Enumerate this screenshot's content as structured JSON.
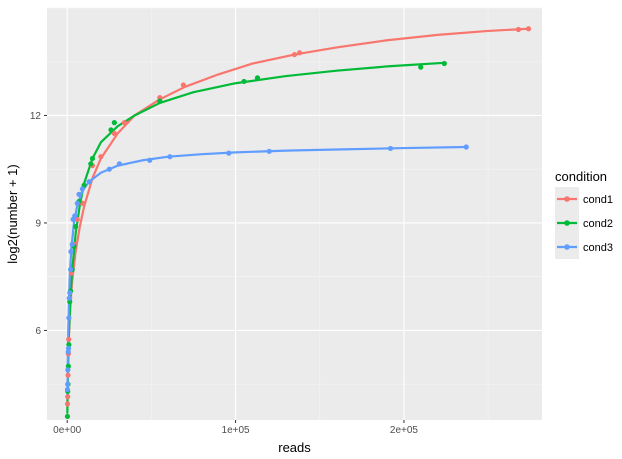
{
  "chart_data": {
    "type": "scatter",
    "title": "",
    "xlabel": "reads",
    "ylabel": "log2(number + 1)",
    "xlim": [
      -12000,
      282000
    ],
    "ylim": [
      3.5,
      15.0
    ],
    "x_ticks": [
      0,
      100000,
      200000
    ],
    "x_tick_labels": [
      "0e+00",
      "1e+05",
      "2e+05"
    ],
    "y_ticks": [
      6,
      9,
      12
    ],
    "y_tick_labels": [
      "6",
      "9",
      "12"
    ],
    "grid": true,
    "legend": {
      "title": "condition",
      "placement": "right"
    },
    "series": [
      {
        "name": "cond1",
        "color": "#F8766D",
        "points": [
          [
            200,
            3.95
          ],
          [
            300,
            4.15
          ],
          [
            500,
            4.75
          ],
          [
            700,
            5.35
          ],
          [
            900,
            5.75
          ],
          [
            1500,
            6.9
          ],
          [
            2500,
            7.6
          ],
          [
            4000,
            8.4
          ],
          [
            6000,
            9.1
          ],
          [
            9000,
            9.55
          ],
          [
            15000,
            10.6
          ],
          [
            20000,
            10.85
          ],
          [
            28000,
            11.5
          ],
          [
            34000,
            11.8
          ],
          [
            55000,
            12.5
          ],
          [
            69000,
            12.85
          ],
          [
            135000,
            13.7
          ],
          [
            138000,
            13.75
          ],
          [
            268000,
            14.4
          ],
          [
            274000,
            14.42
          ]
        ],
        "curve": [
          [
            80,
            3.9
          ],
          [
            500,
            5.0
          ],
          [
            1000,
            5.8
          ],
          [
            2000,
            6.8
          ],
          [
            3000,
            7.4
          ],
          [
            5000,
            8.2
          ],
          [
            7500,
            8.9
          ],
          [
            10000,
            9.45
          ],
          [
            15000,
            10.25
          ],
          [
            20000,
            10.8
          ],
          [
            30000,
            11.5
          ],
          [
            40000,
            12.0
          ],
          [
            55000,
            12.45
          ],
          [
            70000,
            12.8
          ],
          [
            90000,
            13.15
          ],
          [
            110000,
            13.45
          ],
          [
            135000,
            13.7
          ],
          [
            160000,
            13.9
          ],
          [
            190000,
            14.1
          ],
          [
            220000,
            14.25
          ],
          [
            250000,
            14.36
          ],
          [
            274000,
            14.42
          ]
        ]
      },
      {
        "name": "cond2",
        "color": "#00BA38",
        "points": [
          [
            150,
            3.6
          ],
          [
            300,
            4.3
          ],
          [
            500,
            4.5
          ],
          [
            700,
            5.0
          ],
          [
            1000,
            5.6
          ],
          [
            1500,
            6.8
          ],
          [
            2000,
            7.1
          ],
          [
            3000,
            7.7
          ],
          [
            4000,
            8.35
          ],
          [
            5000,
            8.9
          ],
          [
            7000,
            9.6
          ],
          [
            10000,
            10.05
          ],
          [
            14000,
            10.65
          ],
          [
            15000,
            10.8
          ],
          [
            26000,
            11.6
          ],
          [
            28000,
            11.8
          ],
          [
            55000,
            12.4
          ],
          [
            105000,
            12.95
          ],
          [
            113000,
            13.05
          ],
          [
            210000,
            13.35
          ],
          [
            224000,
            13.45
          ]
        ],
        "curve": [
          [
            80,
            3.7
          ],
          [
            500,
            5.0
          ],
          [
            1000,
            5.9
          ],
          [
            2000,
            7.0
          ],
          [
            3000,
            7.7
          ],
          [
            5000,
            8.7
          ],
          [
            7500,
            9.5
          ],
          [
            10000,
            10.1
          ],
          [
            15000,
            10.8
          ],
          [
            20000,
            11.25
          ],
          [
            30000,
            11.7
          ],
          [
            40000,
            12.0
          ],
          [
            55000,
            12.35
          ],
          [
            75000,
            12.65
          ],
          [
            100000,
            12.9
          ],
          [
            130000,
            13.1
          ],
          [
            160000,
            13.25
          ],
          [
            190000,
            13.37
          ],
          [
            224000,
            13.47
          ]
        ]
      },
      {
        "name": "cond3",
        "color": "#619CFF",
        "points": [
          [
            150,
            4.35
          ],
          [
            250,
            4.5
          ],
          [
            400,
            4.9
          ],
          [
            600,
            5.4
          ],
          [
            800,
            5.5
          ],
          [
            1000,
            6.35
          ],
          [
            1200,
            6.9
          ],
          [
            1500,
            7.05
          ],
          [
            2000,
            7.7
          ],
          [
            2200,
            8.2
          ],
          [
            3000,
            8.4
          ],
          [
            3500,
            9.1
          ],
          [
            4500,
            9.2
          ],
          [
            6000,
            9.55
          ],
          [
            7000,
            9.8
          ],
          [
            9000,
            9.95
          ],
          [
            13000,
            10.15
          ],
          [
            25000,
            10.5
          ],
          [
            31000,
            10.65
          ],
          [
            49000,
            10.75
          ],
          [
            61000,
            10.85
          ],
          [
            96000,
            10.95
          ],
          [
            120000,
            11.0
          ],
          [
            192000,
            11.08
          ],
          [
            237000,
            11.12
          ]
        ],
        "curve": [
          [
            80,
            4.1
          ],
          [
            300,
            5.0
          ],
          [
            600,
            6.0
          ],
          [
            1000,
            6.8
          ],
          [
            1500,
            7.5
          ],
          [
            2500,
            8.3
          ],
          [
            4000,
            9.0
          ],
          [
            6000,
            9.5
          ],
          [
            9000,
            9.9
          ],
          [
            13000,
            10.15
          ],
          [
            20000,
            10.4
          ],
          [
            30000,
            10.6
          ],
          [
            45000,
            10.75
          ],
          [
            60000,
            10.85
          ],
          [
            80000,
            10.92
          ],
          [
            100000,
            10.97
          ],
          [
            130000,
            11.02
          ],
          [
            160000,
            11.05
          ],
          [
            200000,
            11.09
          ],
          [
            237000,
            11.12
          ]
        ]
      }
    ]
  }
}
